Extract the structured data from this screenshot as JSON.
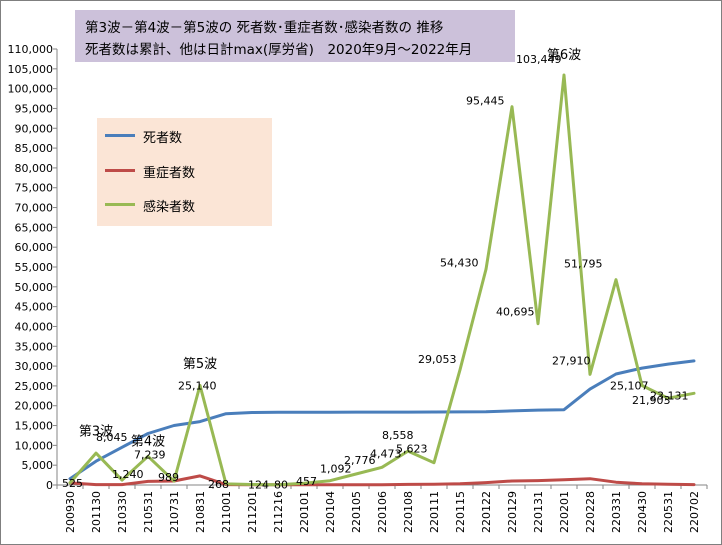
{
  "chart_data": {
    "type": "line",
    "title_lines": [
      "第3波－第4波－第5波の 死者数･重症者数･感染者数の 推移",
      "死者数は累計、他は日計max(厚労省)　2020年9月～2022年月"
    ],
    "xlabel": "",
    "ylabel": "",
    "ylim": [
      0,
      110000
    ],
    "ytick_step": 5000,
    "yticks": [
      "0",
      "5,000",
      "10,000",
      "15,000",
      "20,000",
      "25,000",
      "30,000",
      "35,000",
      "40,000",
      "45,000",
      "50,000",
      "55,000",
      "60,000",
      "65,000",
      "70,000",
      "75,000",
      "80,000",
      "85,000",
      "90,000",
      "95,000",
      "100,000",
      "105,000",
      "110,000"
    ],
    "grid": false,
    "legend_position": "upper-left",
    "categories": [
      "200930",
      "201130",
      "210330",
      "210531",
      "210731",
      "210831",
      "211001",
      "211201",
      "211216",
      "220101",
      "220104",
      "220105",
      "220106",
      "220108",
      "220111",
      "220115",
      "220122",
      "220129",
      "220131",
      "220201",
      "220228",
      "220331",
      "220430",
      "220531",
      "220702"
    ],
    "series": [
      {
        "name": "死者数",
        "color": "#4a7ebb",
        "values": [
          1600,
          6000,
          9500,
          13000,
          15000,
          16000,
          18000,
          18300,
          18350,
          18360,
          18370,
          18380,
          18390,
          18400,
          18420,
          18450,
          18500,
          18700,
          18900,
          19000,
          24200,
          28000,
          29500,
          30500,
          31300
        ]
      },
      {
        "name": "重症者数",
        "color": "#be4b48",
        "values": [
          525,
          100,
          100,
          900,
          1000,
          2300,
          100,
          50,
          40,
          40,
          45,
          50,
          80,
          150,
          200,
          300,
          600,
          1000,
          1100,
          1300,
          1600,
          700,
          300,
          200,
          100
        ]
      },
      {
        "name": "感染者数",
        "color": "#98b954",
        "values": [
          525,
          8045,
          1240,
          7239,
          989,
          25140,
          268,
          124,
          80,
          457,
          1092,
          2776,
          4473,
          8558,
          5623,
          29053,
          54430,
          95445,
          40695,
          103449,
          27910,
          51795,
          25107,
          21903,
          23131
        ]
      }
    ],
    "data_labels": [
      {
        "category": "200930",
        "value": 525,
        "text": "525"
      },
      {
        "category": "201130",
        "value": 8045,
        "text": "8,045"
      },
      {
        "category": "210330",
        "value": 1240,
        "text": "1,240"
      },
      {
        "category": "210531",
        "value": 7239,
        "text": "7,239"
      },
      {
        "category": "210731",
        "value": 989,
        "text": "989"
      },
      {
        "category": "210831",
        "value": 25140,
        "text": "25,140"
      },
      {
        "category": "211001",
        "value": 268,
        "text": "268"
      },
      {
        "category": "211201",
        "value": 124,
        "text": "124"
      },
      {
        "category": "211216",
        "value": 80,
        "text": "80"
      },
      {
        "category": "220101",
        "value": 457,
        "text": "457"
      },
      {
        "category": "220104",
        "value": 1092,
        "text": "1,092"
      },
      {
        "category": "220105",
        "value": 2776,
        "text": "2,776"
      },
      {
        "category": "220106",
        "value": 4473,
        "text": "4,473"
      },
      {
        "category": "220108",
        "value": 8558,
        "text": "8,558"
      },
      {
        "category": "220111",
        "value": 5623,
        "text": "5,623"
      },
      {
        "category": "220115",
        "value": 29053,
        "text": "29,053"
      },
      {
        "category": "220122",
        "value": 54430,
        "text": "54,430"
      },
      {
        "category": "220129",
        "value": 95445,
        "text": "95,445"
      },
      {
        "category": "220131",
        "value": 40695,
        "text": "40,695"
      },
      {
        "category": "220201",
        "value": 103449,
        "text": "103,449"
      },
      {
        "category": "220228",
        "value": 27910,
        "text": "27,910"
      },
      {
        "category": "220331",
        "value": 51795,
        "text": "51,795"
      },
      {
        "category": "220430",
        "value": 25107,
        "text": "25,107"
      },
      {
        "category": "220531",
        "value": 21903,
        "text": "21,903"
      },
      {
        "category": "220702",
        "value": 23131,
        "text": "23,131"
      }
    ],
    "annotations": [
      {
        "text": "第3波",
        "category": "201130",
        "value": 12500
      },
      {
        "text": "第4波",
        "category": "210531",
        "value": 10000
      },
      {
        "text": "第5波",
        "category": "210831",
        "value": 29500
      },
      {
        "text": "第6波",
        "category": "220201",
        "value": 107500
      }
    ]
  }
}
